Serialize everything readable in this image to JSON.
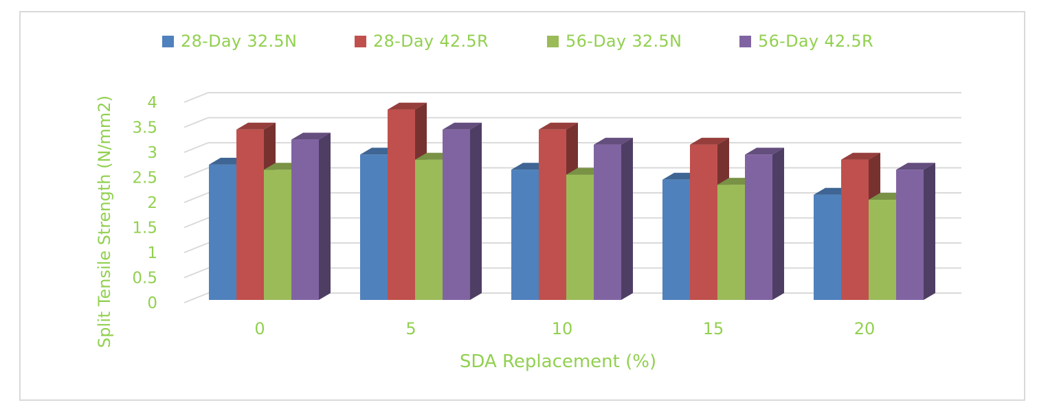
{
  "chart_data": {
    "type": "bar",
    "style": "3d-clustered-column",
    "categories": [
      "0",
      "5",
      "10",
      "15",
      "20"
    ],
    "series": [
      {
        "name": "28-Day 32.5N",
        "color": "#4f81bd",
        "values": [
          2.7,
          2.9,
          2.6,
          2.4,
          2.1
        ]
      },
      {
        "name": "28-Day 42.5R",
        "color": "#c0504d",
        "values": [
          3.4,
          3.8,
          3.4,
          3.1,
          2.8
        ]
      },
      {
        "name": "56-Day 32.5N",
        "color": "#9bbb59",
        "values": [
          2.6,
          2.8,
          2.5,
          2.3,
          2.0
        ]
      },
      {
        "name": "56-Day 42.5R",
        "color": "#8064a2",
        "values": [
          3.2,
          3.4,
          3.1,
          2.9,
          2.6
        ]
      }
    ],
    "xlabel": "SDA Replacement (%)",
    "ylabel": "Split Tensile Strength (N/mm2)",
    "ylim": [
      0,
      4
    ],
    "yticks": [
      "0",
      "0.5",
      "1",
      "1.5",
      "2",
      "2.5",
      "3",
      "3.5",
      "4"
    ],
    "grid": true,
    "legend_position": "top",
    "text_color": "#92d050",
    "grid_color": "#d9d9d9"
  }
}
